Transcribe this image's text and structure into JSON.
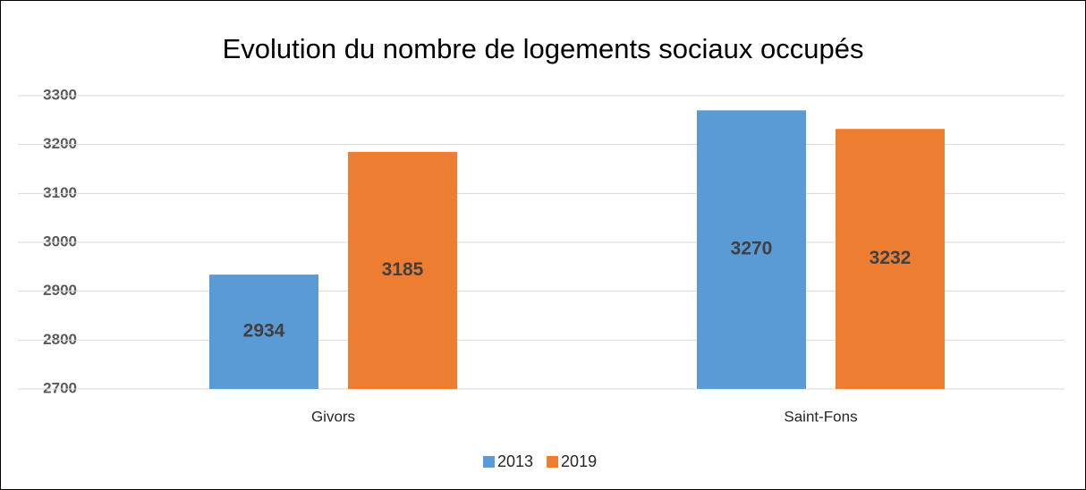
{
  "chart_data": {
    "type": "bar",
    "title": "Evolution du nombre de logements sociaux occupés",
    "categories": [
      "Givors",
      "Saint-Fons"
    ],
    "series": [
      {
        "name": "2013",
        "color": "#5b9bd5",
        "values": [
          2934,
          3270
        ]
      },
      {
        "name": "2019",
        "color": "#ed7d31",
        "values": [
          3185,
          3232
        ]
      }
    ],
    "ylim": [
      2700,
      3300
    ],
    "yticks": [
      2700,
      2800,
      2900,
      3000,
      3100,
      3200,
      3300
    ],
    "grid": true,
    "legend": "bottom"
  }
}
